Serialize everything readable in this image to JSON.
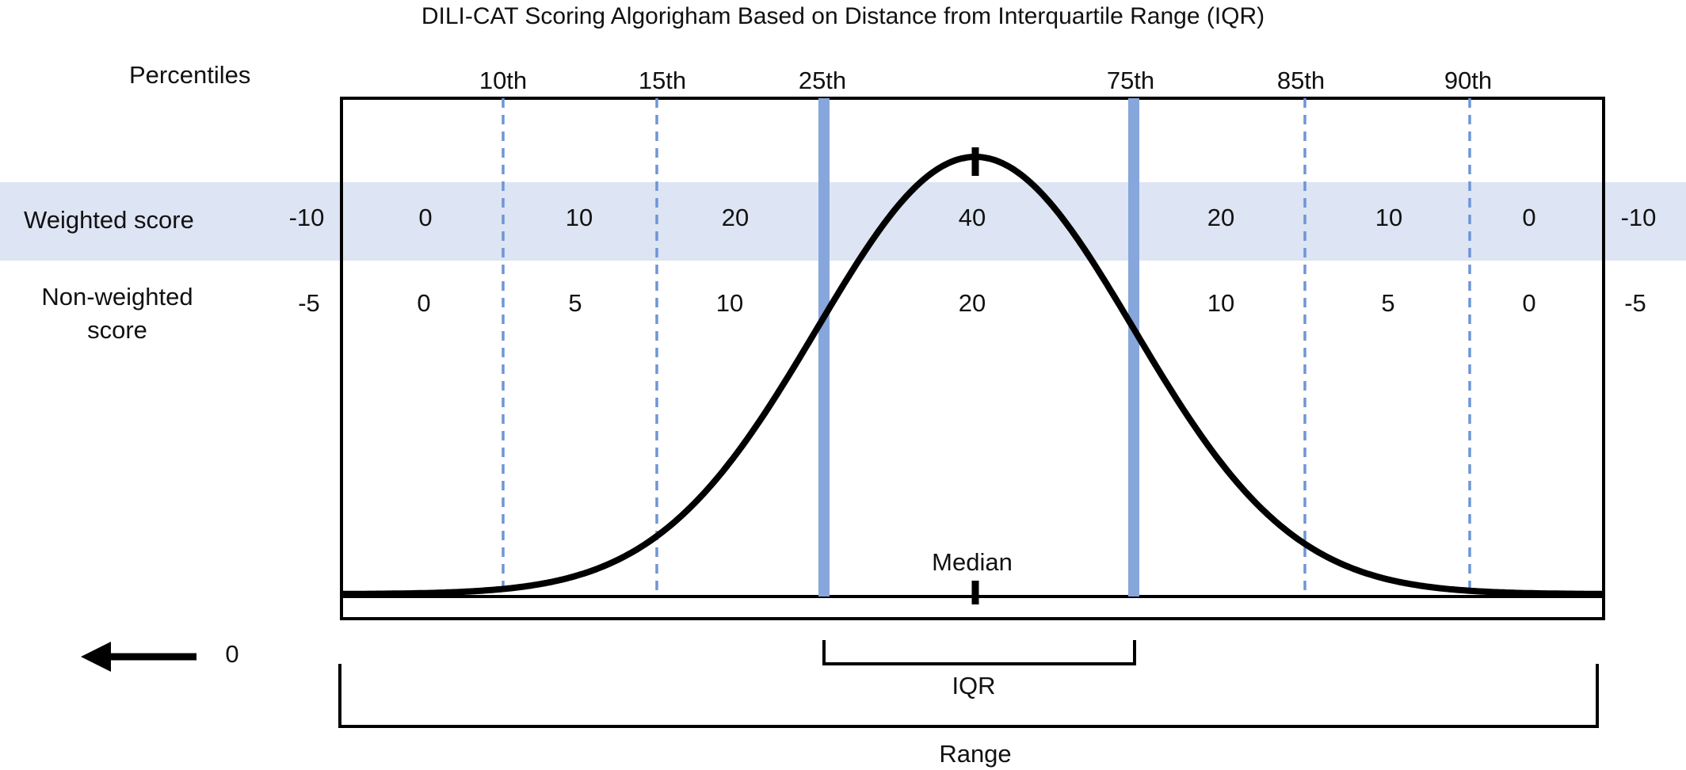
{
  "title": "DILI-CAT Scoring Algorigham Based on Distance from Interquartile Range (IQR)",
  "row_labels": {
    "percentiles": "Percentiles",
    "weighted": "Weighted score",
    "non_weighted_line1": "Non-weighted",
    "non_weighted_line2": "score"
  },
  "percentiles": [
    {
      "label": "10th",
      "kind": "dashed"
    },
    {
      "label": "15th",
      "kind": "dashed"
    },
    {
      "label": "25th",
      "kind": "solid"
    },
    {
      "label": "75th",
      "kind": "solid"
    },
    {
      "label": "85th",
      "kind": "dashed"
    },
    {
      "label": "90th",
      "kind": "dashed"
    }
  ],
  "weighted_scores": [
    "-10",
    "0",
    "10",
    "20",
    "40",
    "20",
    "10",
    "0",
    "-10"
  ],
  "non_weighted_scores": [
    "-5",
    "0",
    "5",
    "10",
    "20",
    "10",
    "5",
    "0",
    "-5"
  ],
  "annotations": {
    "median": "Median",
    "iqr": "IQR",
    "range": "Range",
    "zero": "0"
  },
  "colors": {
    "band": "#dde4f3",
    "quartile_line": "#87a6dc",
    "dashed_line": "#6f95d6",
    "curve": "#000000"
  }
}
